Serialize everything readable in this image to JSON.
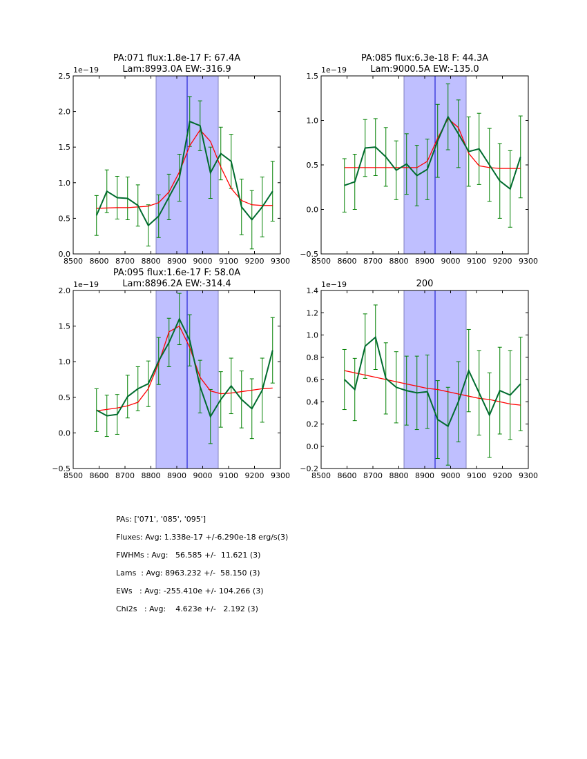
{
  "chart_data": [
    {
      "type": "line",
      "title": [
        "PA:071 flux:1.8e-17 F: 67.4A",
        "Lam:8993.0A EW:-316.9"
      ],
      "offset_label": "1e−19",
      "xlim": [
        8500,
        9300
      ],
      "xticks": [
        8500,
        8600,
        8700,
        8800,
        8900,
        9000,
        9100,
        9200,
        9300
      ],
      "ylim": [
        0,
        2.5
      ],
      "yticks": [
        0,
        0.5,
        1,
        1.5,
        2,
        2.5
      ],
      "ytick_labels": [
        "0.0",
        "0.5",
        "1.0",
        "1.5",
        "2.0",
        "2.5"
      ],
      "band": [
        8820,
        9060
      ],
      "vline": 8940,
      "x": [
        8590,
        8630,
        8670,
        8710,
        8750,
        8790,
        8830,
        8870,
        8910,
        8950,
        8990,
        9030,
        9070,
        9110,
        9150,
        9190,
        9230,
        9270
      ],
      "y": [
        0.54,
        0.88,
        0.79,
        0.78,
        0.68,
        0.4,
        0.53,
        0.8,
        1.07,
        1.86,
        1.8,
        1.14,
        1.41,
        1.3,
        0.66,
        0.48,
        0.66,
        0.88
      ],
      "err": [
        0.28,
        0.3,
        0.3,
        0.3,
        0.29,
        0.29,
        0.3,
        0.32,
        0.33,
        0.35,
        0.35,
        0.36,
        0.37,
        0.38,
        0.39,
        0.41,
        0.42,
        0.42
      ],
      "model": [
        0.64,
        0.645,
        0.65,
        0.65,
        0.66,
        0.67,
        0.72,
        0.87,
        1.15,
        1.52,
        1.74,
        1.58,
        1.22,
        0.92,
        0.75,
        0.69,
        0.68,
        0.68
      ]
    },
    {
      "type": "line",
      "title": [
        "PA:085 flux:6.3e-18 F: 44.3A",
        "Lam:9000.5A EW:-135.0"
      ],
      "offset_label": "1e−19",
      "xlim": [
        8500,
        9300
      ],
      "xticks": [
        8500,
        8600,
        8700,
        8800,
        8900,
        9000,
        9100,
        9200,
        9300
      ],
      "ylim": [
        -0.5,
        1.5
      ],
      "yticks": [
        -0.5,
        0,
        0.5,
        1,
        1.5
      ],
      "ytick_labels": [
        "−0.5",
        "0.0",
        "0.5",
        "1.0",
        "1.5"
      ],
      "band": [
        8820,
        9060
      ],
      "vline": 8940,
      "x": [
        8590,
        8630,
        8670,
        8710,
        8750,
        8790,
        8830,
        8870,
        8910,
        8950,
        8990,
        9030,
        9070,
        9110,
        9150,
        9190,
        9230,
        9270
      ],
      "y": [
        0.27,
        0.31,
        0.69,
        0.7,
        0.59,
        0.44,
        0.51,
        0.38,
        0.45,
        0.77,
        1.04,
        0.85,
        0.65,
        0.68,
        0.5,
        0.32,
        0.23,
        0.59
      ],
      "err": [
        0.3,
        0.31,
        0.32,
        0.32,
        0.33,
        0.33,
        0.34,
        0.34,
        0.34,
        0.41,
        0.37,
        0.38,
        0.39,
        0.4,
        0.41,
        0.42,
        0.43,
        0.46
      ],
      "model": [
        0.47,
        0.47,
        0.47,
        0.47,
        0.47,
        0.47,
        0.47,
        0.47,
        0.54,
        0.8,
        1.02,
        0.92,
        0.63,
        0.49,
        0.47,
        0.46,
        0.46,
        0.46
      ]
    },
    {
      "type": "line",
      "title": [
        "PA:095 flux:1.6e-17 F: 58.0A",
        "Lam:8896.2A EW:-314.4"
      ],
      "offset_label": "1e−19",
      "xlim": [
        8500,
        9300
      ],
      "xticks": [
        8500,
        8600,
        8700,
        8800,
        8900,
        9000,
        9100,
        9200,
        9300
      ],
      "ylim": [
        -0.5,
        2.0
      ],
      "yticks": [
        -0.5,
        0,
        0.5,
        1,
        1.5,
        2
      ],
      "ytick_labels": [
        "−0.5",
        "0.0",
        "0.5",
        "1.0",
        "1.5",
        "2.0"
      ],
      "band": [
        8820,
        9060
      ],
      "vline": 8940,
      "x": [
        8590,
        8630,
        8670,
        8710,
        8750,
        8790,
        8830,
        8870,
        8910,
        8950,
        8990,
        9030,
        9070,
        9110,
        9150,
        9190,
        9230,
        9270
      ],
      "y": [
        0.32,
        0.24,
        0.26,
        0.51,
        0.62,
        0.69,
        1.01,
        1.27,
        1.6,
        1.3,
        0.65,
        0.23,
        0.47,
        0.66,
        0.47,
        0.34,
        0.6,
        1.16
      ],
      "err": [
        0.3,
        0.29,
        0.28,
        0.3,
        0.31,
        0.32,
        0.33,
        0.34,
        0.36,
        0.36,
        0.37,
        0.38,
        0.39,
        0.39,
        0.4,
        0.42,
        0.45,
        0.46
      ],
      "model": [
        0.31,
        0.33,
        0.35,
        0.38,
        0.43,
        0.62,
        0.98,
        1.42,
        1.5,
        1.2,
        0.78,
        0.59,
        0.55,
        0.56,
        0.58,
        0.6,
        0.62,
        0.63
      ]
    },
    {
      "type": "line",
      "title": [
        "200"
      ],
      "offset_label": "1e−19",
      "xlim": [
        8500,
        9300
      ],
      "xticks": [
        8500,
        8600,
        8700,
        8800,
        8900,
        9000,
        9100,
        9200,
        9300
      ],
      "ylim": [
        -0.2,
        1.4
      ],
      "yticks": [
        -0.2,
        0,
        0.2,
        0.4,
        0.6,
        0.8,
        1.0,
        1.2,
        1.4
      ],
      "ytick_labels": [
        "−0.2",
        "0.0",
        "0.2",
        "0.4",
        "0.6",
        "0.8",
        "1.0",
        "1.2",
        "1.4"
      ],
      "band": [
        8820,
        9060
      ],
      "vline": 8940,
      "x": [
        8590,
        8630,
        8670,
        8710,
        8750,
        8790,
        8830,
        8870,
        8910,
        8950,
        8990,
        9030,
        9070,
        9110,
        9150,
        9190,
        9230,
        9270
      ],
      "y": [
        0.6,
        0.51,
        0.9,
        0.98,
        0.61,
        0.53,
        0.5,
        0.48,
        0.49,
        0.24,
        0.18,
        0.4,
        0.68,
        0.48,
        0.28,
        0.5,
        0.46,
        0.56
      ],
      "err": [
        0.27,
        0.28,
        0.29,
        0.29,
        0.32,
        0.32,
        0.31,
        0.33,
        0.33,
        0.35,
        0.35,
        0.36,
        0.37,
        0.38,
        0.38,
        0.39,
        0.4,
        0.42
      ],
      "model": [
        0.68,
        0.66,
        0.64,
        0.62,
        0.6,
        0.58,
        0.56,
        0.54,
        0.52,
        0.51,
        0.49,
        0.47,
        0.45,
        0.43,
        0.42,
        0.4,
        0.38,
        0.37
      ]
    }
  ],
  "colors": {
    "data": "#006b2e",
    "errorbar": "#008000",
    "model": "#ff0000",
    "band": "#bfbfff",
    "vline": "#0000cc"
  },
  "stats": [
    "PAs: ['071', '085', '095']",
    "Fluxes: Avg: 1.338e-17 +/-6.290e-18 erg/s(3)",
    "FWHMs : Avg:   56.585 +/-  11.621 (3)",
    "Lams  : Avg: 8963.232 +/-  58.150 (3)",
    "EWs   : Avg: -255.410e +/- 104.266 (3)",
    "Chi2s   : Avg:    4.623e +/-   2.192 (3)"
  ]
}
